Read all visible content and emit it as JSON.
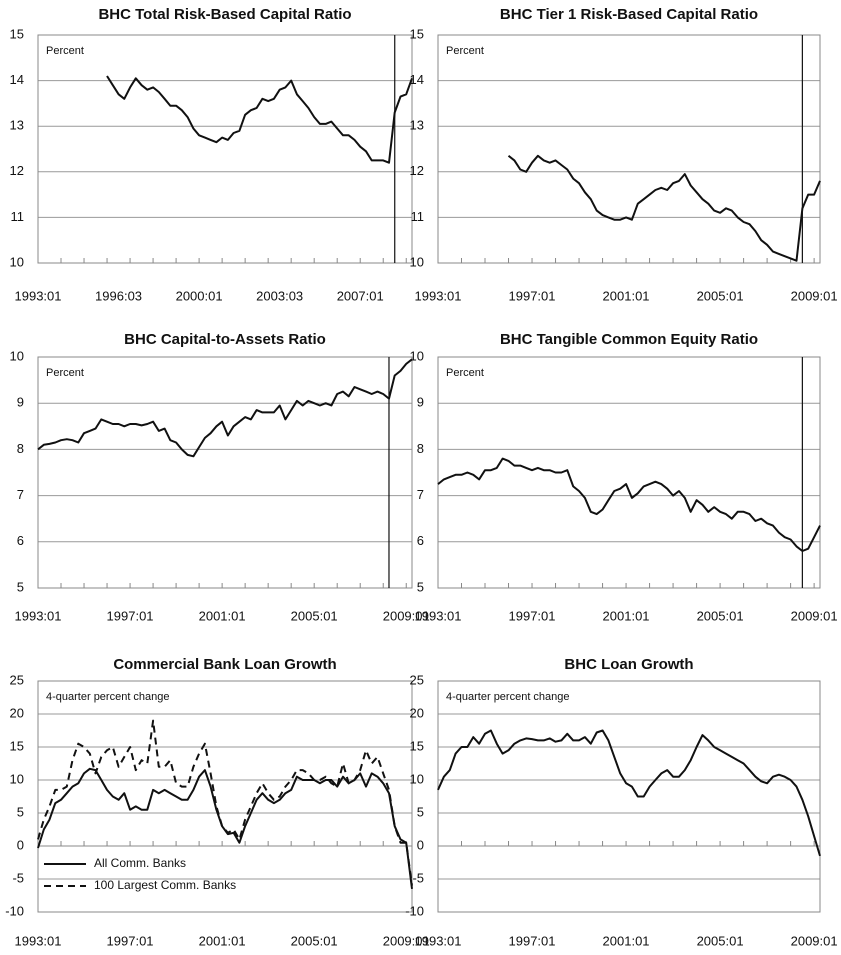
{
  "chart_data": [
    {
      "type": "line",
      "title": "BHC Total Risk-Based Capital Ratio",
      "unit_label": "Percent",
      "color": "#111111",
      "grid": true,
      "vline": 2008.5,
      "xlim": [
        1993,
        2009.25
      ],
      "xticks": [
        {
          "value": 1993,
          "label": "1993:01"
        },
        {
          "value": 1996.5,
          "label": "1996:03"
        },
        {
          "value": 2000,
          "label": "2000:01"
        },
        {
          "value": 2003.5,
          "label": "2003:03"
        },
        {
          "value": 2007,
          "label": "2007:01"
        }
      ],
      "ylim": [
        10,
        15
      ],
      "yticks": [
        10,
        11,
        12,
        13,
        14,
        15
      ],
      "x": [
        1993,
        1993.25,
        1993.5,
        1993.75,
        1994,
        1994.25,
        1994.5,
        1994.75,
        1995,
        1995.25,
        1995.5,
        1995.75,
        1996,
        1996.25,
        1996.5,
        1996.75,
        1997,
        1997.25,
        1997.5,
        1997.75,
        1998,
        1998.25,
        1998.5,
        1998.75,
        1999,
        1999.25,
        1999.5,
        1999.75,
        2000,
        2000.25,
        2000.5,
        2000.75,
        2001,
        2001.25,
        2001.5,
        2001.75,
        2002,
        2002.25,
        2002.5,
        2002.75,
        2003,
        2003.25,
        2003.5,
        2003.75,
        2004,
        2004.25,
        2004.5,
        2004.75,
        2005,
        2005.25,
        2005.5,
        2005.75,
        2006,
        2006.25,
        2006.5,
        2006.75,
        2007,
        2007.25,
        2007.5,
        2007.75,
        2008,
        2008.25,
        2008.5,
        2008.75,
        2009,
        2009.25
      ],
      "values": [
        null,
        null,
        null,
        null,
        null,
        null,
        null,
        null,
        null,
        null,
        null,
        null,
        14.1,
        13.9,
        13.7,
        13.6,
        13.85,
        14.05,
        13.9,
        13.8,
        13.85,
        13.75,
        13.6,
        13.45,
        13.45,
        13.35,
        13.2,
        12.95,
        12.8,
        12.75,
        12.7,
        12.65,
        12.75,
        12.7,
        12.85,
        12.9,
        13.25,
        13.35,
        13.4,
        13.6,
        13.55,
        13.6,
        13.8,
        13.85,
        14.0,
        13.7,
        13.55,
        13.4,
        13.2,
        13.05,
        13.05,
        13.1,
        12.95,
        12.8,
        12.8,
        12.7,
        12.55,
        12.45,
        12.25,
        12.25,
        12.25,
        12.2,
        13.3,
        13.65,
        13.7,
        14.05
      ]
    },
    {
      "type": "line",
      "title": "BHC Tier 1 Risk-Based Capital Ratio",
      "unit_label": "Percent",
      "color": "#111111",
      "grid": true,
      "vline": 2008.5,
      "xlim": [
        1993,
        2009.25
      ],
      "xticks": [
        {
          "value": 1993,
          "label": "1993:01"
        },
        {
          "value": 1997,
          "label": "1997:01"
        },
        {
          "value": 2001,
          "label": "2001:01"
        },
        {
          "value": 2005,
          "label": "2005:01"
        },
        {
          "value": 2009,
          "label": "2009:01"
        }
      ],
      "ylim": [
        10,
        15
      ],
      "yticks": [
        10,
        11,
        12,
        13,
        14,
        15
      ],
      "x": [
        1993,
        1993.25,
        1993.5,
        1993.75,
        1994,
        1994.25,
        1994.5,
        1994.75,
        1995,
        1995.25,
        1995.5,
        1995.75,
        1996,
        1996.25,
        1996.5,
        1996.75,
        1997,
        1997.25,
        1997.5,
        1997.75,
        1998,
        1998.25,
        1998.5,
        1998.75,
        1999,
        1999.25,
        1999.5,
        1999.75,
        2000,
        2000.25,
        2000.5,
        2000.75,
        2001,
        2001.25,
        2001.5,
        2001.75,
        2002,
        2002.25,
        2002.5,
        2002.75,
        2003,
        2003.25,
        2003.5,
        2003.75,
        2004,
        2004.25,
        2004.5,
        2004.75,
        2005,
        2005.25,
        2005.5,
        2005.75,
        2006,
        2006.25,
        2006.5,
        2006.75,
        2007,
        2007.25,
        2007.5,
        2007.75,
        2008,
        2008.25,
        2008.5,
        2008.75,
        2009,
        2009.25
      ],
      "values": [
        null,
        null,
        null,
        null,
        null,
        null,
        null,
        null,
        null,
        null,
        null,
        null,
        12.35,
        12.25,
        12.05,
        12.0,
        12.2,
        12.35,
        12.25,
        12.2,
        12.25,
        12.15,
        12.05,
        11.85,
        11.75,
        11.55,
        11.4,
        11.15,
        11.05,
        11.0,
        10.95,
        10.95,
        11.0,
        10.95,
        11.3,
        11.4,
        11.5,
        11.6,
        11.65,
        11.6,
        11.75,
        11.8,
        11.95,
        11.7,
        11.55,
        11.4,
        11.3,
        11.15,
        11.1,
        11.2,
        11.15,
        11.0,
        10.9,
        10.85,
        10.7,
        10.5,
        10.4,
        10.25,
        10.2,
        10.15,
        10.1,
        10.05,
        11.2,
        11.5,
        11.5,
        11.8
      ]
    },
    {
      "type": "line",
      "title": "BHC Capital-to-Assets Ratio",
      "unit_label": "Percent",
      "color": "#111111",
      "grid": true,
      "vline": 2008.25,
      "xlim": [
        1993,
        2009.25
      ],
      "xticks": [
        {
          "value": 1993,
          "label": "1993:01"
        },
        {
          "value": 1997,
          "label": "1997:01"
        },
        {
          "value": 2001,
          "label": "2001:01"
        },
        {
          "value": 2005,
          "label": "2005:01"
        },
        {
          "value": 2009,
          "label": "2009:01"
        }
      ],
      "ylim": [
        5,
        10
      ],
      "yticks": [
        5,
        6,
        7,
        8,
        9,
        10
      ],
      "x": [
        1993,
        1993.25,
        1993.5,
        1993.75,
        1994,
        1994.25,
        1994.5,
        1994.75,
        1995,
        1995.25,
        1995.5,
        1995.75,
        1996,
        1996.25,
        1996.5,
        1996.75,
        1997,
        1997.25,
        1997.5,
        1997.75,
        1998,
        1998.25,
        1998.5,
        1998.75,
        1999,
        1999.25,
        1999.5,
        1999.75,
        2000,
        2000.25,
        2000.5,
        2000.75,
        2001,
        2001.25,
        2001.5,
        2001.75,
        2002,
        2002.25,
        2002.5,
        2002.75,
        2003,
        2003.25,
        2003.5,
        2003.75,
        2004,
        2004.25,
        2004.5,
        2004.75,
        2005,
        2005.25,
        2005.5,
        2005.75,
        2006,
        2006.25,
        2006.5,
        2006.75,
        2007,
        2007.25,
        2007.5,
        2007.75,
        2008,
        2008.25,
        2008.5,
        2008.75,
        2009,
        2009.25
      ],
      "values": [
        8.0,
        8.1,
        8.12,
        8.15,
        8.2,
        8.22,
        8.2,
        8.15,
        8.35,
        8.4,
        8.45,
        8.65,
        8.6,
        8.55,
        8.55,
        8.5,
        8.55,
        8.55,
        8.52,
        8.55,
        8.6,
        8.4,
        8.45,
        8.2,
        8.15,
        8.0,
        7.88,
        7.85,
        8.05,
        8.25,
        8.35,
        8.5,
        8.6,
        8.3,
        8.5,
        8.6,
        8.7,
        8.65,
        8.85,
        8.8,
        8.8,
        8.8,
        8.95,
        8.65,
        8.85,
        9.05,
        8.95,
        9.05,
        9.0,
        8.95,
        9.0,
        8.95,
        9.2,
        9.25,
        9.15,
        9.35,
        9.3,
        9.25,
        9.2,
        9.25,
        9.2,
        9.1,
        9.6,
        9.7,
        9.85,
        9.95
      ]
    },
    {
      "type": "line",
      "title": "BHC Tangible Common Equity Ratio",
      "unit_label": "Percent",
      "color": "#111111",
      "grid": true,
      "vline": 2008.5,
      "xlim": [
        1993,
        2009.25
      ],
      "xticks": [
        {
          "value": 1993,
          "label": "1993:01"
        },
        {
          "value": 1997,
          "label": "1997:01"
        },
        {
          "value": 2001,
          "label": "2001:01"
        },
        {
          "value": 2005,
          "label": "2005:01"
        },
        {
          "value": 2009,
          "label": "2009:01"
        }
      ],
      "ylim": [
        5,
        10
      ],
      "yticks": [
        5,
        6,
        7,
        8,
        9,
        10
      ],
      "x": [
        1993,
        1993.25,
        1993.5,
        1993.75,
        1994,
        1994.25,
        1994.5,
        1994.75,
        1995,
        1995.25,
        1995.5,
        1995.75,
        1996,
        1996.25,
        1996.5,
        1996.75,
        1997,
        1997.25,
        1997.5,
        1997.75,
        1998,
        1998.25,
        1998.5,
        1998.75,
        1999,
        1999.25,
        1999.5,
        1999.75,
        2000,
        2000.25,
        2000.5,
        2000.75,
        2001,
        2001.25,
        2001.5,
        2001.75,
        2002,
        2002.25,
        2002.5,
        2002.75,
        2003,
        2003.25,
        2003.5,
        2003.75,
        2004,
        2004.25,
        2004.5,
        2004.75,
        2005,
        2005.25,
        2005.5,
        2005.75,
        2006,
        2006.25,
        2006.5,
        2006.75,
        2007,
        2007.25,
        2007.5,
        2007.75,
        2008,
        2008.25,
        2008.5,
        2008.75,
        2009,
        2009.25
      ],
      "values": [
        7.25,
        7.35,
        7.4,
        7.45,
        7.45,
        7.5,
        7.45,
        7.35,
        7.55,
        7.55,
        7.6,
        7.8,
        7.75,
        7.65,
        7.65,
        7.6,
        7.55,
        7.6,
        7.55,
        7.55,
        7.5,
        7.5,
        7.55,
        7.2,
        7.1,
        6.95,
        6.65,
        6.6,
        6.7,
        6.9,
        7.1,
        7.15,
        7.25,
        6.95,
        7.05,
        7.2,
        7.25,
        7.3,
        7.25,
        7.15,
        7.0,
        7.1,
        6.95,
        6.65,
        6.9,
        6.8,
        6.65,
        6.75,
        6.65,
        6.6,
        6.5,
        6.65,
        6.65,
        6.6,
        6.45,
        6.5,
        6.4,
        6.35,
        6.2,
        6.1,
        6.05,
        5.9,
        5.8,
        5.85,
        6.1,
        6.35
      ]
    },
    {
      "type": "line",
      "title": "Commercial Bank Loan Growth",
      "unit_label": "4-quarter percent change",
      "grid": true,
      "legend": "lower left",
      "xlim": [
        1993,
        2009.25
      ],
      "xticks": [
        {
          "value": 1993,
          "label": "1993:01"
        },
        {
          "value": 1997,
          "label": "1997:01"
        },
        {
          "value": 2001,
          "label": "2001:01"
        },
        {
          "value": 2005,
          "label": "2005:01"
        },
        {
          "value": 2009,
          "label": "2009:01"
        }
      ],
      "ylim": [
        -10,
        25
      ],
      "yticks": [
        -10,
        -5,
        0,
        5,
        10,
        15,
        20,
        25
      ],
      "x": [
        1993,
        1993.25,
        1993.5,
        1993.75,
        1994,
        1994.25,
        1994.5,
        1994.75,
        1995,
        1995.25,
        1995.5,
        1995.75,
        1996,
        1996.25,
        1996.5,
        1996.75,
        1997,
        1997.25,
        1997.5,
        1997.75,
        1998,
        1998.25,
        1998.5,
        1998.75,
        1999,
        1999.25,
        1999.5,
        1999.75,
        2000,
        2000.25,
        2000.5,
        2000.75,
        2001,
        2001.25,
        2001.5,
        2001.75,
        2002,
        2002.25,
        2002.5,
        2002.75,
        2003,
        2003.25,
        2003.5,
        2003.75,
        2004,
        2004.25,
        2004.5,
        2004.75,
        2005,
        2005.25,
        2005.5,
        2005.75,
        2006,
        2006.25,
        2006.5,
        2006.75,
        2007,
        2007.25,
        2007.5,
        2007.75,
        2008,
        2008.25,
        2008.5,
        2008.75,
        2009,
        2009.25
      ],
      "series": [
        {
          "name": "All Comm. Banks",
          "color": "#111111",
          "dash": false,
          "values": [
            -0.3,
            2.5,
            4,
            6.5,
            7,
            8,
            9,
            9.5,
            11,
            11.7,
            11.5,
            10,
            8.5,
            7.5,
            7,
            8,
            5.5,
            6,
            5.5,
            5.5,
            8.5,
            8,
            8.5,
            8,
            7.5,
            7,
            7,
            8.5,
            10.5,
            11.5,
            9,
            5.5,
            3,
            1.8,
            2,
            0.5,
            3,
            5,
            7,
            8,
            7,
            6.5,
            7,
            8,
            8.5,
            10.5,
            10,
            10,
            10,
            9.5,
            10,
            10,
            9,
            10.5,
            9.5,
            10,
            11,
            9,
            11,
            10.5,
            9.5,
            8,
            3,
            1,
            0.5,
            -6.5
          ]
        },
        {
          "name": "100 Largest Comm. Banks",
          "color": "#111111",
          "dash": true,
          "values": [
            1,
            4,
            6,
            8.5,
            8.5,
            9,
            13,
            15.5,
            15,
            14,
            11,
            13.5,
            14.5,
            15,
            12,
            13.5,
            15,
            11.5,
            13,
            12.5,
            19,
            12,
            12,
            13,
            9.5,
            9,
            9,
            12,
            14,
            15.5,
            11,
            6,
            3,
            2,
            2.5,
            1,
            4,
            6,
            8,
            9.5,
            8,
            7,
            7.5,
            9,
            10,
            11.5,
            11.5,
            11,
            10,
            10,
            10.5,
            9.5,
            9,
            12.5,
            9.5,
            10,
            11.5,
            14.5,
            12.5,
            13.5,
            11,
            8.5,
            3,
            0.5,
            0.5,
            -6
          ]
        }
      ]
    },
    {
      "type": "line",
      "title": "BHC Loan Growth",
      "unit_label": "4-quarter percent change",
      "color": "#111111",
      "grid": true,
      "xlim": [
        1993,
        2009.25
      ],
      "xticks": [
        {
          "value": 1993,
          "label": "1993:01"
        },
        {
          "value": 1997,
          "label": "1997:01"
        },
        {
          "value": 2001,
          "label": "2001:01"
        },
        {
          "value": 2005,
          "label": "2005:01"
        },
        {
          "value": 2009,
          "label": "2009:01"
        }
      ],
      "ylim": [
        -10,
        25
      ],
      "yticks": [
        -10,
        -5,
        0,
        5,
        10,
        15,
        20,
        25
      ],
      "x": [
        1993,
        1993.25,
        1993.5,
        1993.75,
        1994,
        1994.25,
        1994.5,
        1994.75,
        1995,
        1995.25,
        1995.5,
        1995.75,
        1996,
        1996.25,
        1996.5,
        1996.75,
        1997,
        1997.25,
        1997.5,
        1997.75,
        1998,
        1998.25,
        1998.5,
        1998.75,
        1999,
        1999.25,
        1999.5,
        1999.75,
        2000,
        2000.25,
        2000.5,
        2000.75,
        2001,
        2001.25,
        2001.5,
        2001.75,
        2002,
        2002.25,
        2002.5,
        2002.75,
        2003,
        2003.25,
        2003.5,
        2003.75,
        2004,
        2004.25,
        2004.5,
        2004.75,
        2005,
        2005.25,
        2005.5,
        2005.75,
        2006,
        2006.25,
        2006.5,
        2006.75,
        2007,
        2007.25,
        2007.5,
        2007.75,
        2008,
        2008.25,
        2008.5,
        2008.75,
        2009,
        2009.25
      ],
      "values": [
        8.5,
        10.5,
        11.5,
        14,
        15,
        15,
        16.5,
        15.5,
        17,
        17.5,
        15.5,
        14,
        14.5,
        15.5,
        16,
        16.3,
        16.2,
        16,
        16,
        16.3,
        15.8,
        16,
        17,
        16,
        16,
        16.5,
        15.5,
        17.2,
        17.5,
        16,
        13.5,
        11,
        9.5,
        9,
        7.5,
        7.5,
        9,
        10,
        11,
        11.5,
        10.5,
        10.5,
        11.5,
        13,
        15,
        16.8,
        16,
        15,
        14.5,
        14,
        13.5,
        13,
        12.5,
        11.5,
        10.5,
        9.8,
        9.5,
        10.5,
        10.8,
        10.5,
        10,
        9,
        7,
        4.5,
        1.5,
        -1.5
      ]
    }
  ]
}
